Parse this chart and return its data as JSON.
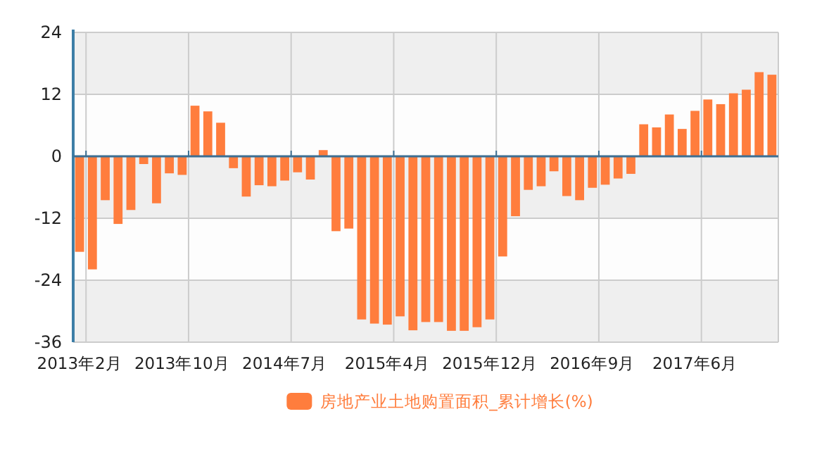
{
  "chart_data": {
    "type": "bar",
    "categories": [
      "2013年2月",
      null,
      null,
      null,
      null,
      null,
      null,
      null,
      "2013年10月",
      null,
      null,
      null,
      null,
      null,
      null,
      null,
      "2014年7月",
      null,
      null,
      null,
      null,
      null,
      null,
      null,
      "2015年4月",
      null,
      null,
      null,
      null,
      null,
      null,
      null,
      "2015年12月",
      null,
      null,
      null,
      null,
      null,
      null,
      null,
      "2016年9月",
      null,
      null,
      null,
      null,
      null,
      null,
      null,
      "2017年6月",
      null,
      null,
      null,
      null,
      null,
      null
    ],
    "series": [
      {
        "name": "房地产业土地购置面积_累计增长(%)",
        "color": "#ff7d3d",
        "values": [
          -18.5,
          -21.9,
          -8.5,
          -13.1,
          -10.4,
          -1.5,
          -9.1,
          -3.3,
          -3.6,
          9.8,
          8.7,
          6.5,
          -2.3,
          -7.8,
          -5.6,
          -5.8,
          -4.7,
          -3.1,
          -4.5,
          1.2,
          -14.5,
          -14.0,
          -31.6,
          -32.4,
          -32.6,
          -31.0,
          -33.7,
          -32.1,
          -32.1,
          -33.8,
          -33.8,
          -33.1,
          -31.6,
          -19.4,
          -11.6,
          -6.5,
          -5.8,
          -2.9,
          -7.7,
          -8.5,
          -6.1,
          -5.5,
          -4.3,
          -3.4,
          6.2,
          5.6,
          8.1,
          5.3,
          8.8,
          11.0,
          10.1,
          12.2,
          12.9,
          16.3,
          15.8
        ]
      }
    ],
    "ylim": [
      -36,
      24
    ],
    "yticks": [
      -36,
      -24,
      -12,
      0,
      12,
      24
    ],
    "grid": true,
    "legend": "bottom",
    "ref_lines": [
      {
        "axis": "y",
        "value": 0,
        "color": "#3d6f93"
      }
    ]
  }
}
